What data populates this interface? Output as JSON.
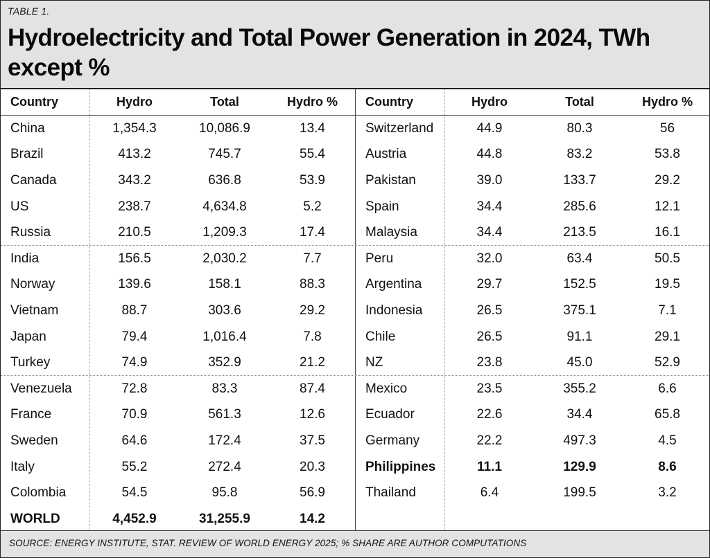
{
  "table_label": "TABLE 1.",
  "title": "Hydroelectricity and Total Power Generation in 2024, TWh except %",
  "columns": [
    "Country",
    "Hydro",
    "Total",
    "Hydro %"
  ],
  "left_rows": [
    {
      "country": "China",
      "hydro": "1,354.3",
      "total": "10,086.9",
      "pct": "13.4"
    },
    {
      "country": "Brazil",
      "hydro": "413.2",
      "total": "745.7",
      "pct": "55.4"
    },
    {
      "country": "Canada",
      "hydro": "343.2",
      "total": "636.8",
      "pct": "53.9"
    },
    {
      "country": "US",
      "hydro": "238.7",
      "total": "4,634.8",
      "pct": "5.2"
    },
    {
      "country": "Russia",
      "hydro": "210.5",
      "total": "1,209.3",
      "pct": "17.4"
    },
    {
      "country": "India",
      "hydro": "156.5",
      "total": "2,030.2",
      "pct": "7.7"
    },
    {
      "country": "Norway",
      "hydro": "139.6",
      "total": "158.1",
      "pct": "88.3"
    },
    {
      "country": "Vietnam",
      "hydro": "88.7",
      "total": "303.6",
      "pct": "29.2"
    },
    {
      "country": "Japan",
      "hydro": "79.4",
      "total": "1,016.4",
      "pct": "7.8"
    },
    {
      "country": "Turkey",
      "hydro": "74.9",
      "total": "352.9",
      "pct": "21.2"
    },
    {
      "country": "Venezuela",
      "hydro": "72.8",
      "total": "83.3",
      "pct": "87.4"
    },
    {
      "country": "France",
      "hydro": "70.9",
      "total": "561.3",
      "pct": "12.6"
    },
    {
      "country": "Sweden",
      "hydro": "64.6",
      "total": "172.4",
      "pct": "37.5"
    },
    {
      "country": "Italy",
      "hydro": "55.2",
      "total": "272.4",
      "pct": "20.3"
    },
    {
      "country": "Colombia",
      "hydro": "54.5",
      "total": "95.8",
      "pct": "56.9"
    },
    {
      "country": "WORLD",
      "hydro": "4,452.9",
      "total": "31,255.9",
      "pct": "14.2"
    }
  ],
  "right_rows": [
    {
      "country": "Switzerland",
      "hydro": "44.9",
      "total": "80.3",
      "pct": "56"
    },
    {
      "country": "Austria",
      "hydro": "44.8",
      "total": "83.2",
      "pct": "53.8"
    },
    {
      "country": "Pakistan",
      "hydro": "39.0",
      "total": "133.7",
      "pct": "29.2"
    },
    {
      "country": "Spain",
      "hydro": "34.4",
      "total": "285.6",
      "pct": "12.1"
    },
    {
      "country": "Malaysia",
      "hydro": "34.4",
      "total": "213.5",
      "pct": "16.1"
    },
    {
      "country": "Peru",
      "hydro": "32.0",
      "total": "63.4",
      "pct": "50.5"
    },
    {
      "country": "Argentina",
      "hydro": "29.7",
      "total": "152.5",
      "pct": "19.5"
    },
    {
      "country": "Indonesia",
      "hydro": "26.5",
      "total": "375.1",
      "pct": "7.1"
    },
    {
      "country": "Chile",
      "hydro": "26.5",
      "total": "91.1",
      "pct": "29.1"
    },
    {
      "country": "NZ",
      "hydro": "23.8",
      "total": "45.0",
      "pct": "52.9"
    },
    {
      "country": "Mexico",
      "hydro": "23.5",
      "total": "355.2",
      "pct": "6.6"
    },
    {
      "country": "Ecuador",
      "hydro": "22.6",
      "total": "34.4",
      "pct": "65.8"
    },
    {
      "country": "Germany",
      "hydro": "22.2",
      "total": "497.3",
      "pct": "4.5"
    },
    {
      "country": "Philippines",
      "hydro": "11.1",
      "total": "129.9",
      "pct": "8.6"
    },
    {
      "country": "Thailand",
      "hydro": "6.4",
      "total": "199.5",
      "pct": "3.2"
    }
  ],
  "bold_rows": {
    "left": [
      15
    ],
    "right": [
      13
    ]
  },
  "source": "SOURCE: ENERGY INSTITUTE, STAT. REVIEW OF WORLD ENERGY 2025; % SHARE ARE AUTHOR COMPUTATIONS",
  "colors": {
    "header_background": "#e3e3e3",
    "border": "#222222",
    "text": "#111111"
  }
}
